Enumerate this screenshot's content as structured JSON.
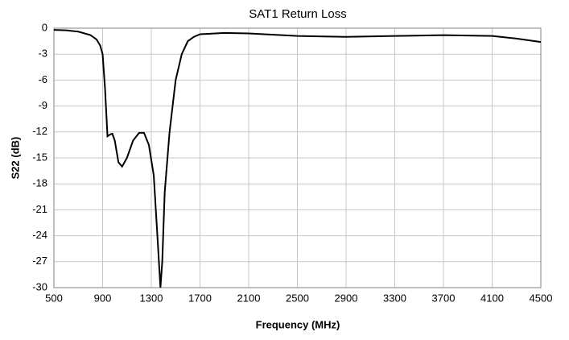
{
  "chart_data": {
    "type": "line",
    "title": "SAT1 Return Loss",
    "xlabel": "Frequency (MHz)",
    "ylabel": "S22 (dB)",
    "x": [
      500,
      600,
      700,
      800,
      850,
      880,
      900,
      920,
      940,
      960,
      980,
      1000,
      1030,
      1060,
      1100,
      1150,
      1200,
      1240,
      1280,
      1320,
      1350,
      1375,
      1390,
      1410,
      1450,
      1500,
      1550,
      1600,
      1650,
      1700,
      1900,
      2100,
      2500,
      2900,
      3300,
      3700,
      4100,
      4300,
      4500
    ],
    "series": [
      {
        "name": "S22",
        "color": "#000000",
        "values": [
          -0.2,
          -0.25,
          -0.4,
          -0.8,
          -1.3,
          -2,
          -3,
          -7,
          -12.5,
          -12.3,
          -12.2,
          -13,
          -15.5,
          -16,
          -15,
          -13,
          -12.1,
          -12.1,
          -13.5,
          -17,
          -24,
          -30,
          -27,
          -19,
          -12,
          -6,
          -3,
          -1.5,
          -1,
          -0.7,
          -0.55,
          -0.6,
          -0.9,
          -1.0,
          -0.9,
          -0.8,
          -0.9,
          -1.2,
          -1.6
        ]
      }
    ],
    "xlim": [
      500,
      4500
    ],
    "xticks": [
      500,
      900,
      1300,
      1700,
      2100,
      2500,
      2900,
      3300,
      3700,
      4100,
      4500
    ],
    "ylim": [
      -30,
      0
    ],
    "yticks": [
      0,
      -3,
      -6,
      -9,
      -12,
      -15,
      -18,
      -21,
      -24,
      -27,
      -30
    ],
    "grid": true
  }
}
